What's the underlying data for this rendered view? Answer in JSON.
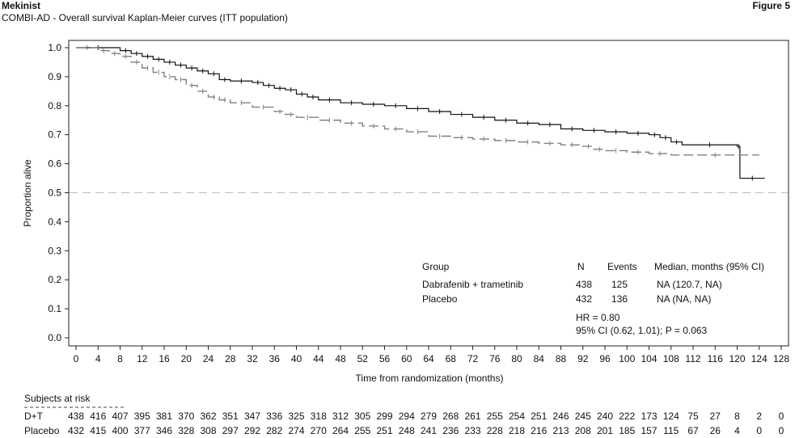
{
  "header": {
    "brand": "Mekinist",
    "subtitle": "COMBI-AD - Overall survival Kaplan-Meier curves (ITT population)",
    "figure_label": "Figure 5"
  },
  "colors": {
    "dt": "#111111",
    "placebo": "#808080",
    "reference": "#bbbbbb"
  },
  "chart_data": {
    "type": "line",
    "xlabel": "Time from randomization (months)",
    "ylabel": "Proportion alive",
    "xlim": [
      0,
      128
    ],
    "ylim": [
      0,
      1
    ],
    "x_ticks": [
      0,
      4,
      8,
      12,
      16,
      20,
      24,
      28,
      32,
      36,
      40,
      44,
      48,
      52,
      56,
      60,
      64,
      68,
      72,
      76,
      80,
      84,
      88,
      92,
      96,
      100,
      104,
      108,
      112,
      116,
      120,
      124,
      128
    ],
    "y_ticks": [
      "0.0",
      "0.1",
      "0.2",
      "0.3",
      "0.4",
      "0.5",
      "0.6",
      "0.7",
      "0.8",
      "0.9",
      "1.0"
    ],
    "reference_line": 0.5,
    "series": [
      {
        "name": "Dabrafenib + trametinib",
        "style": "solid",
        "points": [
          [
            0,
            1.0
          ],
          [
            8,
            0.99
          ],
          [
            10,
            0.98
          ],
          [
            12,
            0.97
          ],
          [
            14,
            0.96
          ],
          [
            16,
            0.95
          ],
          [
            18,
            0.94
          ],
          [
            20,
            0.93
          ],
          [
            22,
            0.92
          ],
          [
            24,
            0.91
          ],
          [
            26,
            0.89
          ],
          [
            28,
            0.885
          ],
          [
            32,
            0.88
          ],
          [
            34,
            0.87
          ],
          [
            36,
            0.86
          ],
          [
            38,
            0.855
          ],
          [
            40,
            0.84
          ],
          [
            42,
            0.83
          ],
          [
            44,
            0.82
          ],
          [
            48,
            0.81
          ],
          [
            52,
            0.805
          ],
          [
            56,
            0.8
          ],
          [
            60,
            0.79
          ],
          [
            64,
            0.78
          ],
          [
            68,
            0.77
          ],
          [
            72,
            0.76
          ],
          [
            76,
            0.75
          ],
          [
            80,
            0.74
          ],
          [
            84,
            0.735
          ],
          [
            88,
            0.72
          ],
          [
            92,
            0.715
          ],
          [
            96,
            0.71
          ],
          [
            100,
            0.705
          ],
          [
            104,
            0.7
          ],
          [
            106,
            0.69
          ],
          [
            108,
            0.675
          ],
          [
            110,
            0.665
          ],
          [
            120,
            0.66
          ],
          [
            120.5,
            0.55
          ],
          [
            125,
            0.55
          ]
        ]
      },
      {
        "name": "Placebo",
        "style": "dashed",
        "points": [
          [
            0,
            1.0
          ],
          [
            4,
            0.99
          ],
          [
            6,
            0.98
          ],
          [
            8,
            0.97
          ],
          [
            10,
            0.95
          ],
          [
            12,
            0.93
          ],
          [
            14,
            0.915
          ],
          [
            16,
            0.9
          ],
          [
            18,
            0.89
          ],
          [
            20,
            0.87
          ],
          [
            22,
            0.85
          ],
          [
            24,
            0.83
          ],
          [
            26,
            0.82
          ],
          [
            28,
            0.81
          ],
          [
            32,
            0.795
          ],
          [
            36,
            0.78
          ],
          [
            38,
            0.77
          ],
          [
            40,
            0.76
          ],
          [
            44,
            0.75
          ],
          [
            48,
            0.74
          ],
          [
            52,
            0.73
          ],
          [
            56,
            0.72
          ],
          [
            60,
            0.71
          ],
          [
            64,
            0.695
          ],
          [
            68,
            0.69
          ],
          [
            72,
            0.685
          ],
          [
            76,
            0.68
          ],
          [
            80,
            0.675
          ],
          [
            84,
            0.67
          ],
          [
            88,
            0.665
          ],
          [
            92,
            0.66
          ],
          [
            94,
            0.65
          ],
          [
            96,
            0.645
          ],
          [
            100,
            0.64
          ],
          [
            104,
            0.635
          ],
          [
            108,
            0.63
          ],
          [
            124,
            0.63
          ]
        ]
      }
    ],
    "legend": {
      "position": "bottom-right",
      "headers": [
        "Group",
        "N",
        "Events",
        "Median, months (95% CI)"
      ],
      "rows": [
        [
          "Dabrafenib + trametinib",
          "438",
          "125",
          "NA (120.7, NA)"
        ],
        [
          "Placebo",
          "432",
          "136",
          "NA (NA, NA)"
        ]
      ],
      "hr_text": "HR = 0.80",
      "ci_text": "95% CI (0.62, 1.01); P = 0.063"
    },
    "risk_table": {
      "title": "Subjects at risk",
      "rows": [
        {
          "label": "D+T",
          "values": [
            "438",
            "416",
            "407",
            "395",
            "381",
            "370",
            "362",
            "351",
            "347",
            "336",
            "325",
            "318",
            "312",
            "305",
            "299",
            "294",
            "279",
            "268",
            "261",
            "255",
            "254",
            "251",
            "246",
            "245",
            "240",
            "222",
            "173",
            "124",
            "75",
            "27",
            "8",
            "2",
            "0"
          ]
        },
        {
          "label": "Placebo",
          "values": [
            "432",
            "415",
            "400",
            "377",
            "346",
            "328",
            "308",
            "297",
            "292",
            "282",
            "274",
            "270",
            "264",
            "255",
            "251",
            "248",
            "241",
            "236",
            "233",
            "228",
            "218",
            "216",
            "213",
            "208",
            "201",
            "185",
            "157",
            "115",
            "67",
            "26",
            "4",
            "0",
            "0"
          ]
        }
      ]
    }
  }
}
